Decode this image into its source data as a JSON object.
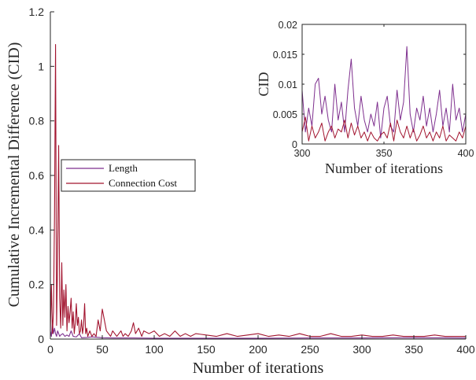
{
  "chart_data": [
    {
      "type": "line",
      "xlabel": "Number of iterations",
      "ylabel": "Cumulative Incremental Difference (CID)",
      "xlim": [
        0,
        400
      ],
      "ylim": [
        0,
        1.2
      ],
      "xticks": [
        "0",
        "50",
        "100",
        "150",
        "200",
        "250",
        "300",
        "350",
        "400"
      ],
      "yticks": [
        "0",
        "0.2",
        "0.4",
        "0.6",
        "0.8",
        "1",
        "1.2"
      ],
      "legend_position": "center-left",
      "series": [
        {
          "name": "Length",
          "color": "#7e2f8e",
          "x": [
            0,
            1,
            2,
            3,
            4,
            5,
            6,
            7,
            8,
            9,
            10,
            12,
            14,
            16,
            18,
            20,
            22,
            25,
            28,
            30,
            35,
            40,
            50,
            60,
            80,
            100,
            150,
            200,
            250,
            300,
            350,
            400
          ],
          "y": [
            0.03,
            0.01,
            0.06,
            0.02,
            0.04,
            0.02,
            0.01,
            0.03,
            0.02,
            0.01,
            0.015,
            0.02,
            0.01,
            0.015,
            0.01,
            0.03,
            0.01,
            0.008,
            0.02,
            0.005,
            0.006,
            0.008,
            0.005,
            0.004,
            0.004,
            0.003,
            0.003,
            0.003,
            0.004,
            0.004,
            0.005,
            0.004
          ]
        },
        {
          "name": "Connection Cost",
          "color": "#a2142f",
          "x": [
            0,
            1,
            2,
            3,
            4,
            5,
            6,
            7,
            8,
            9,
            10,
            11,
            12,
            13,
            14,
            15,
            16,
            17,
            18,
            19,
            20,
            21,
            22,
            23,
            24,
            25,
            26,
            27,
            28,
            29,
            30,
            31,
            32,
            33,
            34,
            35,
            36,
            38,
            40,
            42,
            44,
            46,
            48,
            50,
            52,
            54,
            56,
            58,
            60,
            62,
            64,
            66,
            68,
            70,
            72,
            75,
            78,
            80,
            82,
            85,
            88,
            90,
            95,
            100,
            105,
            110,
            115,
            120,
            125,
            130,
            135,
            140,
            150,
            160,
            170,
            180,
            190,
            200,
            210,
            220,
            230,
            240,
            250,
            260,
            270,
            280,
            290,
            300,
            310,
            320,
            330,
            340,
            350,
            360,
            370,
            380,
            390,
            400
          ],
          "y": [
            0.03,
            0.2,
            0.02,
            0.1,
            0.45,
            1.08,
            0.05,
            0.3,
            0.71,
            0.15,
            0.04,
            0.28,
            0.05,
            0.18,
            0.08,
            0.2,
            0.03,
            0.12,
            0.06,
            0.1,
            0.15,
            0.04,
            0.1,
            0.02,
            0.06,
            0.13,
            0.05,
            0.08,
            0.02,
            0.03,
            0.07,
            0.02,
            0.05,
            0.13,
            0.02,
            0.04,
            0.01,
            0.03,
            0.01,
            0.02,
            0.01,
            0.07,
            0.03,
            0.11,
            0.07,
            0.03,
            0.02,
            0.01,
            0.03,
            0.02,
            0.01,
            0.02,
            0.03,
            0.01,
            0.02,
            0.01,
            0.03,
            0.06,
            0.02,
            0.04,
            0.01,
            0.03,
            0.02,
            0.03,
            0.01,
            0.02,
            0.01,
            0.03,
            0.01,
            0.02,
            0.01,
            0.02,
            0.015,
            0.01,
            0.02,
            0.01,
            0.015,
            0.02,
            0.01,
            0.015,
            0.01,
            0.02,
            0.01,
            0.01,
            0.02,
            0.01,
            0.01,
            0.015,
            0.01,
            0.01,
            0.015,
            0.01,
            0.01,
            0.01,
            0.015,
            0.01,
            0.01,
            0.01
          ]
        }
      ]
    },
    {
      "type": "line",
      "xlabel": "Number of iterations",
      "ylabel": "CID",
      "xlim": [
        300,
        400
      ],
      "ylim": [
        0,
        0.02
      ],
      "xticks": [
        "300",
        "350",
        "400"
      ],
      "yticks": [
        "0",
        "0.005",
        "0.01",
        "0.015",
        "0.02"
      ],
      "series": [
        {
          "name": "Length",
          "color": "#7e2f8e",
          "x": [
            300,
            302,
            304,
            306,
            308,
            310,
            312,
            314,
            316,
            318,
            320,
            322,
            324,
            326,
            328,
            330,
            332,
            334,
            336,
            338,
            340,
            342,
            344,
            346,
            348,
            350,
            352,
            354,
            356,
            358,
            360,
            362,
            364,
            366,
            368,
            370,
            372,
            374,
            376,
            378,
            380,
            382,
            384,
            386,
            388,
            390,
            392,
            394,
            396,
            398,
            400
          ],
          "y": [
            0.009,
            0.002,
            0.006,
            0.003,
            0.01,
            0.011,
            0.005,
            0.008,
            0.004,
            0.002,
            0.01,
            0.004,
            0.007,
            0.002,
            0.009,
            0.0142,
            0.006,
            0.003,
            0.008,
            0.004,
            0.002,
            0.005,
            0.003,
            0.007,
            0.001,
            0.006,
            0.008,
            0.003,
            0.002,
            0.009,
            0.004,
            0.007,
            0.0163,
            0.005,
            0.002,
            0.006,
            0.004,
            0.008,
            0.003,
            0.006,
            0.002,
            0.005,
            0.009,
            0.003,
            0.006,
            0.002,
            0.01,
            0.004,
            0.006,
            0.002,
            0.005
          ]
        },
        {
          "name": "Connection Cost",
          "color": "#a2142f",
          "x": [
            300,
            302,
            304,
            306,
            308,
            310,
            312,
            314,
            316,
            318,
            320,
            322,
            324,
            326,
            328,
            330,
            332,
            334,
            336,
            338,
            340,
            342,
            344,
            346,
            348,
            350,
            352,
            354,
            356,
            358,
            360,
            362,
            364,
            366,
            368,
            370,
            372,
            374,
            376,
            378,
            380,
            382,
            384,
            386,
            388,
            390,
            392,
            394,
            396,
            398,
            400
          ],
          "y": [
            0.002,
            0.0045,
            0.0005,
            0.003,
            0.001,
            0.002,
            0.0035,
            0.0005,
            0.002,
            0.003,
            0.001,
            0.0025,
            0.002,
            0.004,
            0.001,
            0.0035,
            0.0015,
            0.003,
            0.001,
            0.002,
            0.0005,
            0.002,
            0.001,
            0.0005,
            0.0015,
            0.002,
            0.001,
            0.0035,
            0.0005,
            0.004,
            0.002,
            0.001,
            0.003,
            0.001,
            0.0025,
            0.0005,
            0.0015,
            0.003,
            0.001,
            0.002,
            0.0005,
            0.002,
            0.001,
            0.003,
            0.0005,
            0.0015,
            0.001,
            0.0005,
            0.002,
            0.001,
            0.003
          ]
        }
      ]
    }
  ]
}
